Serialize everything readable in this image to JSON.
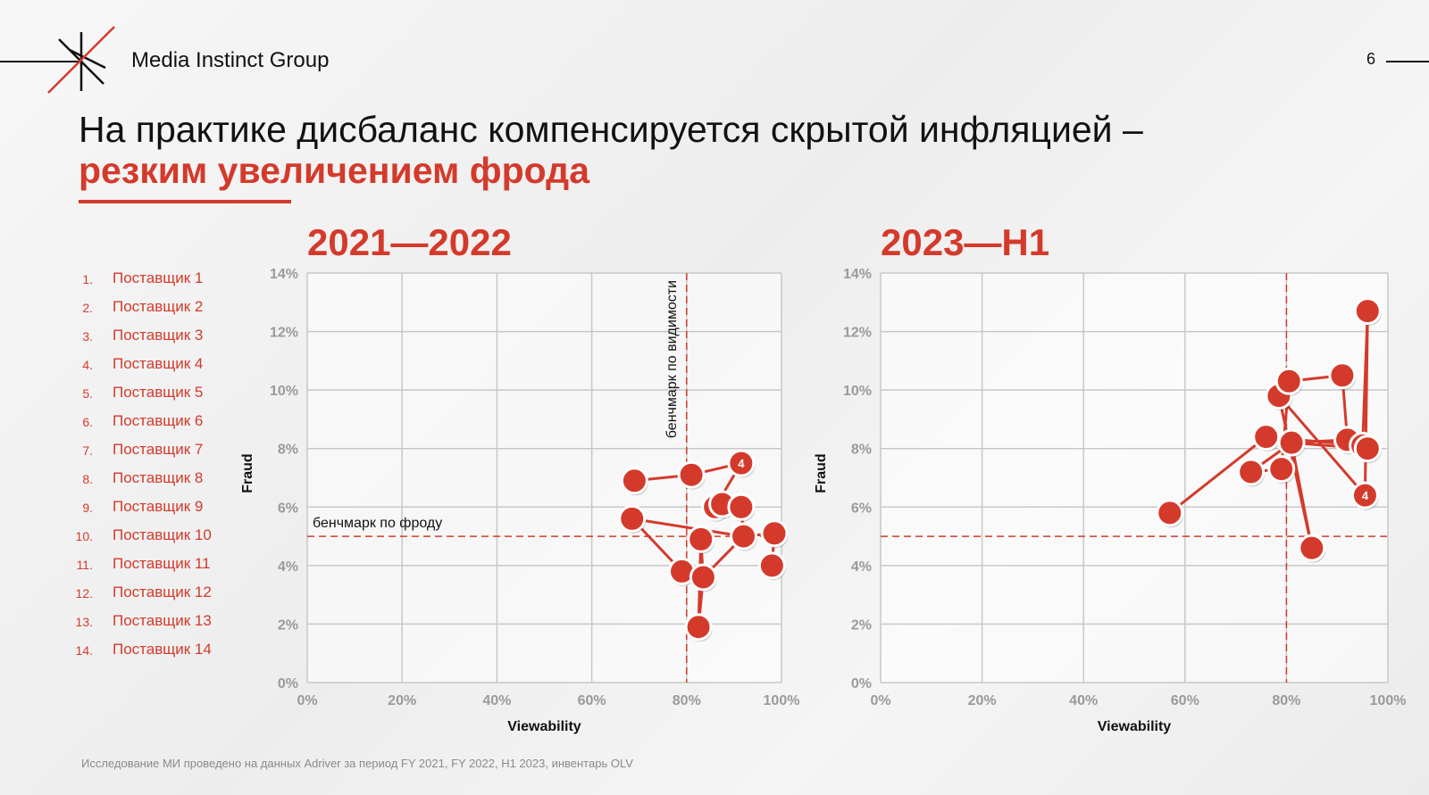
{
  "brand": "Media Instinct Group",
  "page_number": "6",
  "title_line1": "На практике дисбаланс компенсируется  скрытой инфляцией –",
  "title_line2": "резким увеличением фрода",
  "legend": [
    {
      "num": "1.",
      "label": "Поставщик 1"
    },
    {
      "num": "2.",
      "label": "Поставщик 2"
    },
    {
      "num": "3.",
      "label": "Поставщик 3"
    },
    {
      "num": "4.",
      "label": "Поставщик 4"
    },
    {
      "num": "5.",
      "label": "Поставщик 5"
    },
    {
      "num": "6.",
      "label": "Поставщик 6"
    },
    {
      "num": "7.",
      "label": "Поставщик 7"
    },
    {
      "num": "8.",
      "label": "Поставщик 8"
    },
    {
      "num": "9.",
      "label": "Поставщик 9"
    },
    {
      "num": "10.",
      "label": "Поставщик 10"
    },
    {
      "num": "11.",
      "label": "Поставщик 11"
    },
    {
      "num": "12.",
      "label": "Поставщик 12"
    },
    {
      "num": "13.",
      "label": "Поставщик 13"
    },
    {
      "num": "14.",
      "label": "Поставщик 14"
    }
  ],
  "footnote": "Исследование МИ проведено на данных Adriver за период FY 2021, FY 2022, H1 2023, инвентарь OLV",
  "colors": {
    "accent": "#d43a2b",
    "grid": "#c8c8c8",
    "text": "#111111"
  },
  "chart_data": [
    {
      "type": "scatter",
      "title": "2021—2022",
      "xlabel": "Viewability",
      "ylabel": "Fraud",
      "xlim": [
        0,
        100
      ],
      "ylim": [
        0,
        14
      ],
      "x_ticks": [
        "0%",
        "20%",
        "40%",
        "60%",
        "80%",
        "100%"
      ],
      "y_ticks": [
        "0%",
        "2%",
        "4%",
        "6%",
        "8%",
        "10%",
        "12%",
        "14%"
      ],
      "grid": true,
      "benchmark_x": 80,
      "benchmark_y": 5,
      "benchmark_x_label": "бенчмарк по видимости",
      "benchmark_y_label": "бенчмарк по фроду",
      "points": [
        {
          "x": 69,
          "y": 6.9
        },
        {
          "x": 81,
          "y": 7.1
        },
        {
          "x": 91.5,
          "y": 7.5,
          "label": "4"
        },
        {
          "x": 86,
          "y": 6.0
        },
        {
          "x": 87.5,
          "y": 6.1
        },
        {
          "x": 91.5,
          "y": 6.0
        },
        {
          "x": 68.5,
          "y": 5.6
        },
        {
          "x": 92,
          "y": 5.0
        },
        {
          "x": 98.5,
          "y": 5.1
        },
        {
          "x": 83,
          "y": 4.9
        },
        {
          "x": 79,
          "y": 3.8
        },
        {
          "x": 83.5,
          "y": 3.6
        },
        {
          "x": 98,
          "y": 4.0
        },
        {
          "x": 82.5,
          "y": 1.9
        }
      ],
      "path": [
        [
          69,
          6.9
        ],
        [
          81,
          7.1
        ],
        [
          91.5,
          7.5
        ],
        [
          86,
          6.0
        ],
        [
          87.5,
          6.1
        ],
        [
          91.5,
          6.0
        ],
        [
          92,
          5.0
        ],
        [
          68.5,
          5.6
        ],
        [
          79,
          3.8
        ],
        [
          83.5,
          3.6
        ],
        [
          83,
          4.9
        ],
        [
          82.5,
          1.9
        ],
        [
          83.5,
          3.6
        ],
        [
          92,
          5.0
        ],
        [
          98.5,
          5.1
        ],
        [
          98,
          4.0
        ]
      ]
    },
    {
      "type": "scatter",
      "title": "2023—H1",
      "xlabel": "Viewability",
      "ylabel": "Fraud",
      "xlim": [
        0,
        100
      ],
      "ylim": [
        0,
        14
      ],
      "x_ticks": [
        "0%",
        "20%",
        "40%",
        "60%",
        "80%",
        "100%"
      ],
      "y_ticks": [
        "0%",
        "2%",
        "4%",
        "6%",
        "8%",
        "10%",
        "12%",
        "14%"
      ],
      "grid": true,
      "benchmark_x": 80,
      "benchmark_y": 5,
      "points": [
        {
          "x": 57,
          "y": 5.8
        },
        {
          "x": 73,
          "y": 7.2
        },
        {
          "x": 79,
          "y": 7.3
        },
        {
          "x": 76,
          "y": 8.4
        },
        {
          "x": 81,
          "y": 8.2
        },
        {
          "x": 78.5,
          "y": 9.8
        },
        {
          "x": 80.5,
          "y": 10.3
        },
        {
          "x": 91,
          "y": 10.5
        },
        {
          "x": 92,
          "y": 8.3
        },
        {
          "x": 95,
          "y": 8.1
        },
        {
          "x": 96,
          "y": 8.0
        },
        {
          "x": 95.5,
          "y": 6.4,
          "label": "4"
        },
        {
          "x": 85,
          "y": 4.6
        },
        {
          "x": 96,
          "y": 12.7
        }
      ],
      "path": [
        [
          57,
          5.8
        ],
        [
          76,
          8.4
        ],
        [
          95,
          8.1
        ],
        [
          96,
          12.7
        ],
        [
          95.5,
          6.4
        ],
        [
          78.5,
          9.8
        ],
        [
          85,
          4.6
        ],
        [
          81,
          8.2
        ],
        [
          73,
          7.2
        ],
        [
          79,
          7.3
        ],
        [
          80.5,
          10.3
        ],
        [
          91,
          10.5
        ],
        [
          92,
          8.3
        ],
        [
          81,
          8.2
        ],
        [
          96,
          8.0
        ]
      ]
    }
  ]
}
